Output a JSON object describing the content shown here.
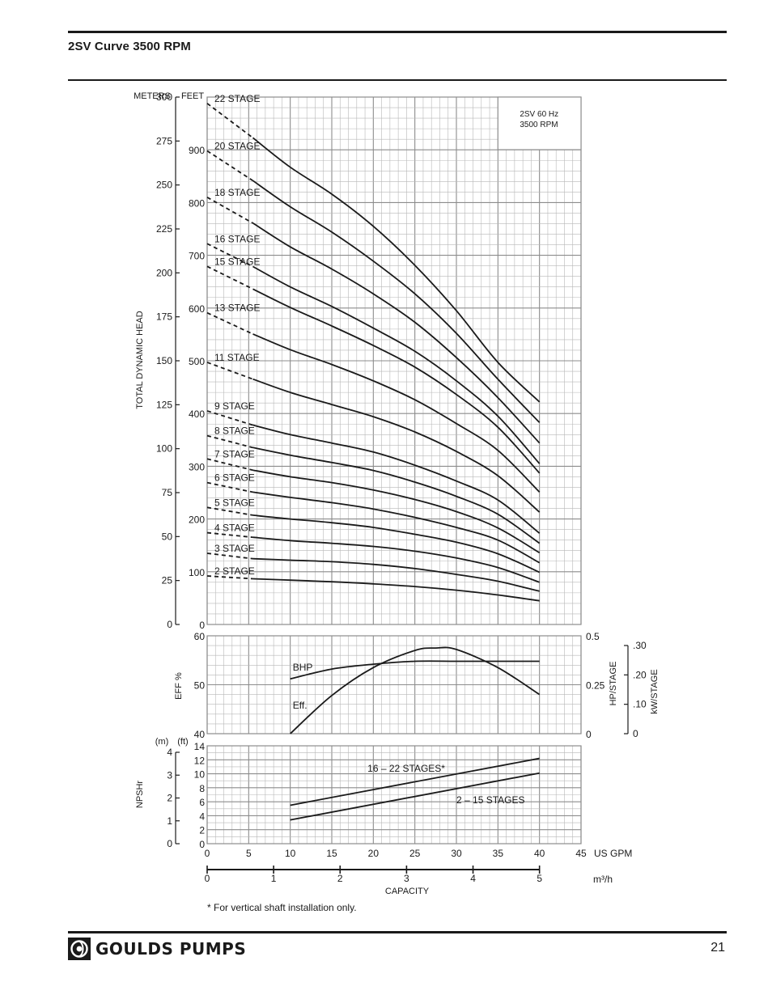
{
  "header": {
    "title": "2SV Curve 3500 RPM"
  },
  "footer": {
    "brand": "GOULDS PUMPS",
    "page_number": "21"
  },
  "colors": {
    "ink": "#1a1a1a",
    "grid": "#8c8c8c",
    "grid_minor": "#b8b8b8",
    "paper": "#ffffff"
  },
  "icons": {
    "logo": "goulds-logo-icon"
  },
  "chart_data": {
    "type": "line",
    "x_unit": "US GPM",
    "x_ticks": [
      "0",
      "5",
      "10",
      "15",
      "20",
      "25",
      "30",
      "35",
      "40",
      "45"
    ],
    "xlim": [
      0,
      45
    ],
    "m3h_ticks": [
      "0",
      "1",
      "2",
      "3",
      "4",
      "5"
    ],
    "m3h_unit": "m³/h",
    "capacity_label": "CAPACITY",
    "footnote": "* For vertical shaft installation only.",
    "head_panel": {
      "ylabel": "TOTAL DYNAMIC HEAD",
      "meters_label": "METERS",
      "feet_label": "FEET",
      "ylim_feet": [
        0,
        1000
      ],
      "meter_ticks": [
        "0",
        "25",
        "50",
        "75",
        "100",
        "125",
        "150",
        "175",
        "200",
        "225",
        "250",
        "275",
        "300"
      ],
      "feet_ticks": [
        "0",
        "100",
        "200",
        "300",
        "400",
        "500",
        "600",
        "700",
        "800",
        "900"
      ],
      "note_line1": "2SV  60 Hz",
      "note_line2": "3500 RPM",
      "dashed_region_gpm": [
        0,
        5.5
      ],
      "series": [
        {
          "name": "2 STAGE",
          "x": [
            0,
            5,
            10,
            15,
            20,
            25,
            30,
            35,
            40
          ],
          "y": [
            92,
            87,
            84,
            81,
            77,
            72,
            65,
            56,
            45
          ]
        },
        {
          "name": "3 STAGE",
          "x": [
            0,
            5,
            10,
            15,
            20,
            25,
            30,
            35,
            40
          ],
          "y": [
            135,
            125,
            122,
            119,
            114,
            106,
            95,
            82,
            63
          ]
        },
        {
          "name": "4 STAGE",
          "x": [
            0,
            5,
            10,
            15,
            20,
            25,
            30,
            35,
            40
          ],
          "y": [
            174,
            166,
            159,
            154,
            148,
            139,
            126,
            108,
            80
          ]
        },
        {
          "name": "5 STAGE",
          "x": [
            0,
            5,
            10,
            15,
            20,
            25,
            30,
            35,
            40
          ],
          "y": [
            222,
            208,
            200,
            193,
            184,
            171,
            156,
            134,
            99
          ]
        },
        {
          "name": "6 STAGE",
          "x": [
            0,
            5,
            10,
            15,
            20,
            25,
            30,
            35,
            40
          ],
          "y": [
            269,
            252,
            241,
            231,
            219,
            203,
            184,
            160,
            117
          ]
        },
        {
          "name": "7 STAGE",
          "x": [
            0,
            5,
            10,
            15,
            20,
            25,
            30,
            35,
            40
          ],
          "y": [
            314,
            294,
            280,
            269,
            255,
            237,
            214,
            183,
            136
          ]
        },
        {
          "name": "8 STAGE",
          "x": [
            0,
            5,
            10,
            15,
            20,
            25,
            30,
            35,
            40
          ],
          "y": [
            358,
            337,
            321,
            307,
            292,
            270,
            243,
            209,
            154
          ]
        },
        {
          "name": "9 STAGE",
          "x": [
            0,
            5,
            10,
            15,
            20,
            25,
            30,
            35,
            40
          ],
          "y": [
            405,
            380,
            360,
            344,
            327,
            302,
            272,
            236,
            173
          ]
        },
        {
          "name": "11 STAGE",
          "x": [
            0,
            5,
            10,
            15,
            20,
            25,
            30,
            35,
            40
          ],
          "y": [
            497,
            468,
            440,
            417,
            394,
            365,
            328,
            282,
            213
          ]
        },
        {
          "name": "13 STAGE",
          "x": [
            0,
            5,
            10,
            15,
            20,
            25,
            30,
            35,
            40
          ],
          "y": [
            591,
            554,
            521,
            493,
            462,
            426,
            381,
            330,
            251
          ]
        },
        {
          "name": "15 STAGE",
          "x": [
            0,
            5,
            10,
            15,
            20,
            25,
            30,
            35,
            40
          ],
          "y": [
            679,
            640,
            601,
            566,
            529,
            488,
            436,
            374,
            287
          ]
        },
        {
          "name": "16 STAGE",
          "x": [
            0,
            5,
            10,
            15,
            20,
            25,
            30,
            35,
            40
          ],
          "y": [
            722,
            683,
            640,
            603,
            562,
            518,
            462,
            395,
            305
          ]
        },
        {
          "name": "18 STAGE",
          "x": [
            0,
            5,
            10,
            15,
            20,
            25,
            30,
            35,
            40
          ],
          "y": [
            810,
            766,
            716,
            674,
            627,
            573,
            506,
            430,
            344
          ]
        },
        {
          "name": "20 STAGE",
          "x": [
            0,
            5,
            10,
            15,
            20,
            25,
            30,
            35,
            40
          ],
          "y": [
            898,
            847,
            792,
            744,
            689,
            627,
            552,
            465,
            383
          ]
        },
        {
          "name": "22 STAGE",
          "x": [
            0,
            5,
            10,
            15,
            20,
            25,
            30,
            35,
            40
          ],
          "y": [
            988,
            929,
            867,
            816,
            755,
            681,
            595,
            497,
            422
          ]
        }
      ]
    },
    "eff_panel": {
      "ylabel_left": "EFF %",
      "left_ticks": [
        "40",
        "50",
        "60"
      ],
      "ylim_eff": [
        40,
        60
      ],
      "right_ticks": [
        "0",
        "0.25",
        "0.5"
      ],
      "ylim_hp": [
        0,
        0.5
      ],
      "right_label": "HP/STAGE",
      "kw_ticks": [
        "0",
        ".10",
        ".20",
        ".30"
      ],
      "kw_label": "kW/STAGE",
      "series": [
        {
          "name": "BHP",
          "axis": "hp",
          "x": [
            10,
            15,
            20,
            25,
            30,
            35,
            40
          ],
          "y": [
            0.28,
            0.33,
            0.355,
            0.37,
            0.37,
            0.37,
            0.37
          ]
        },
        {
          "name": "Eff.",
          "axis": "eff",
          "x": [
            10,
            15,
            20,
            25,
            27.5,
            30,
            35,
            40
          ],
          "y": [
            40,
            47.8,
            53.5,
            57,
            57.5,
            57.2,
            53.5,
            48
          ]
        }
      ]
    },
    "npsh_panel": {
      "ylabel": "NPSHr",
      "m_label": "(m)",
      "ft_label": "(ft)",
      "m_ticks": [
        "0",
        "1",
        "2",
        "3",
        "4"
      ],
      "ft_ticks": [
        "0",
        "2",
        "4",
        "6",
        "8",
        "10",
        "12",
        "14"
      ],
      "ylim_ft": [
        0,
        14
      ],
      "series": [
        {
          "name": "16 – 22 STAGES*",
          "x": [
            10,
            40
          ],
          "y": [
            5.5,
            12.2
          ]
        },
        {
          "name": "2 – 15 STAGES",
          "x": [
            10,
            40
          ],
          "y": [
            3.4,
            10.1
          ]
        }
      ]
    }
  }
}
